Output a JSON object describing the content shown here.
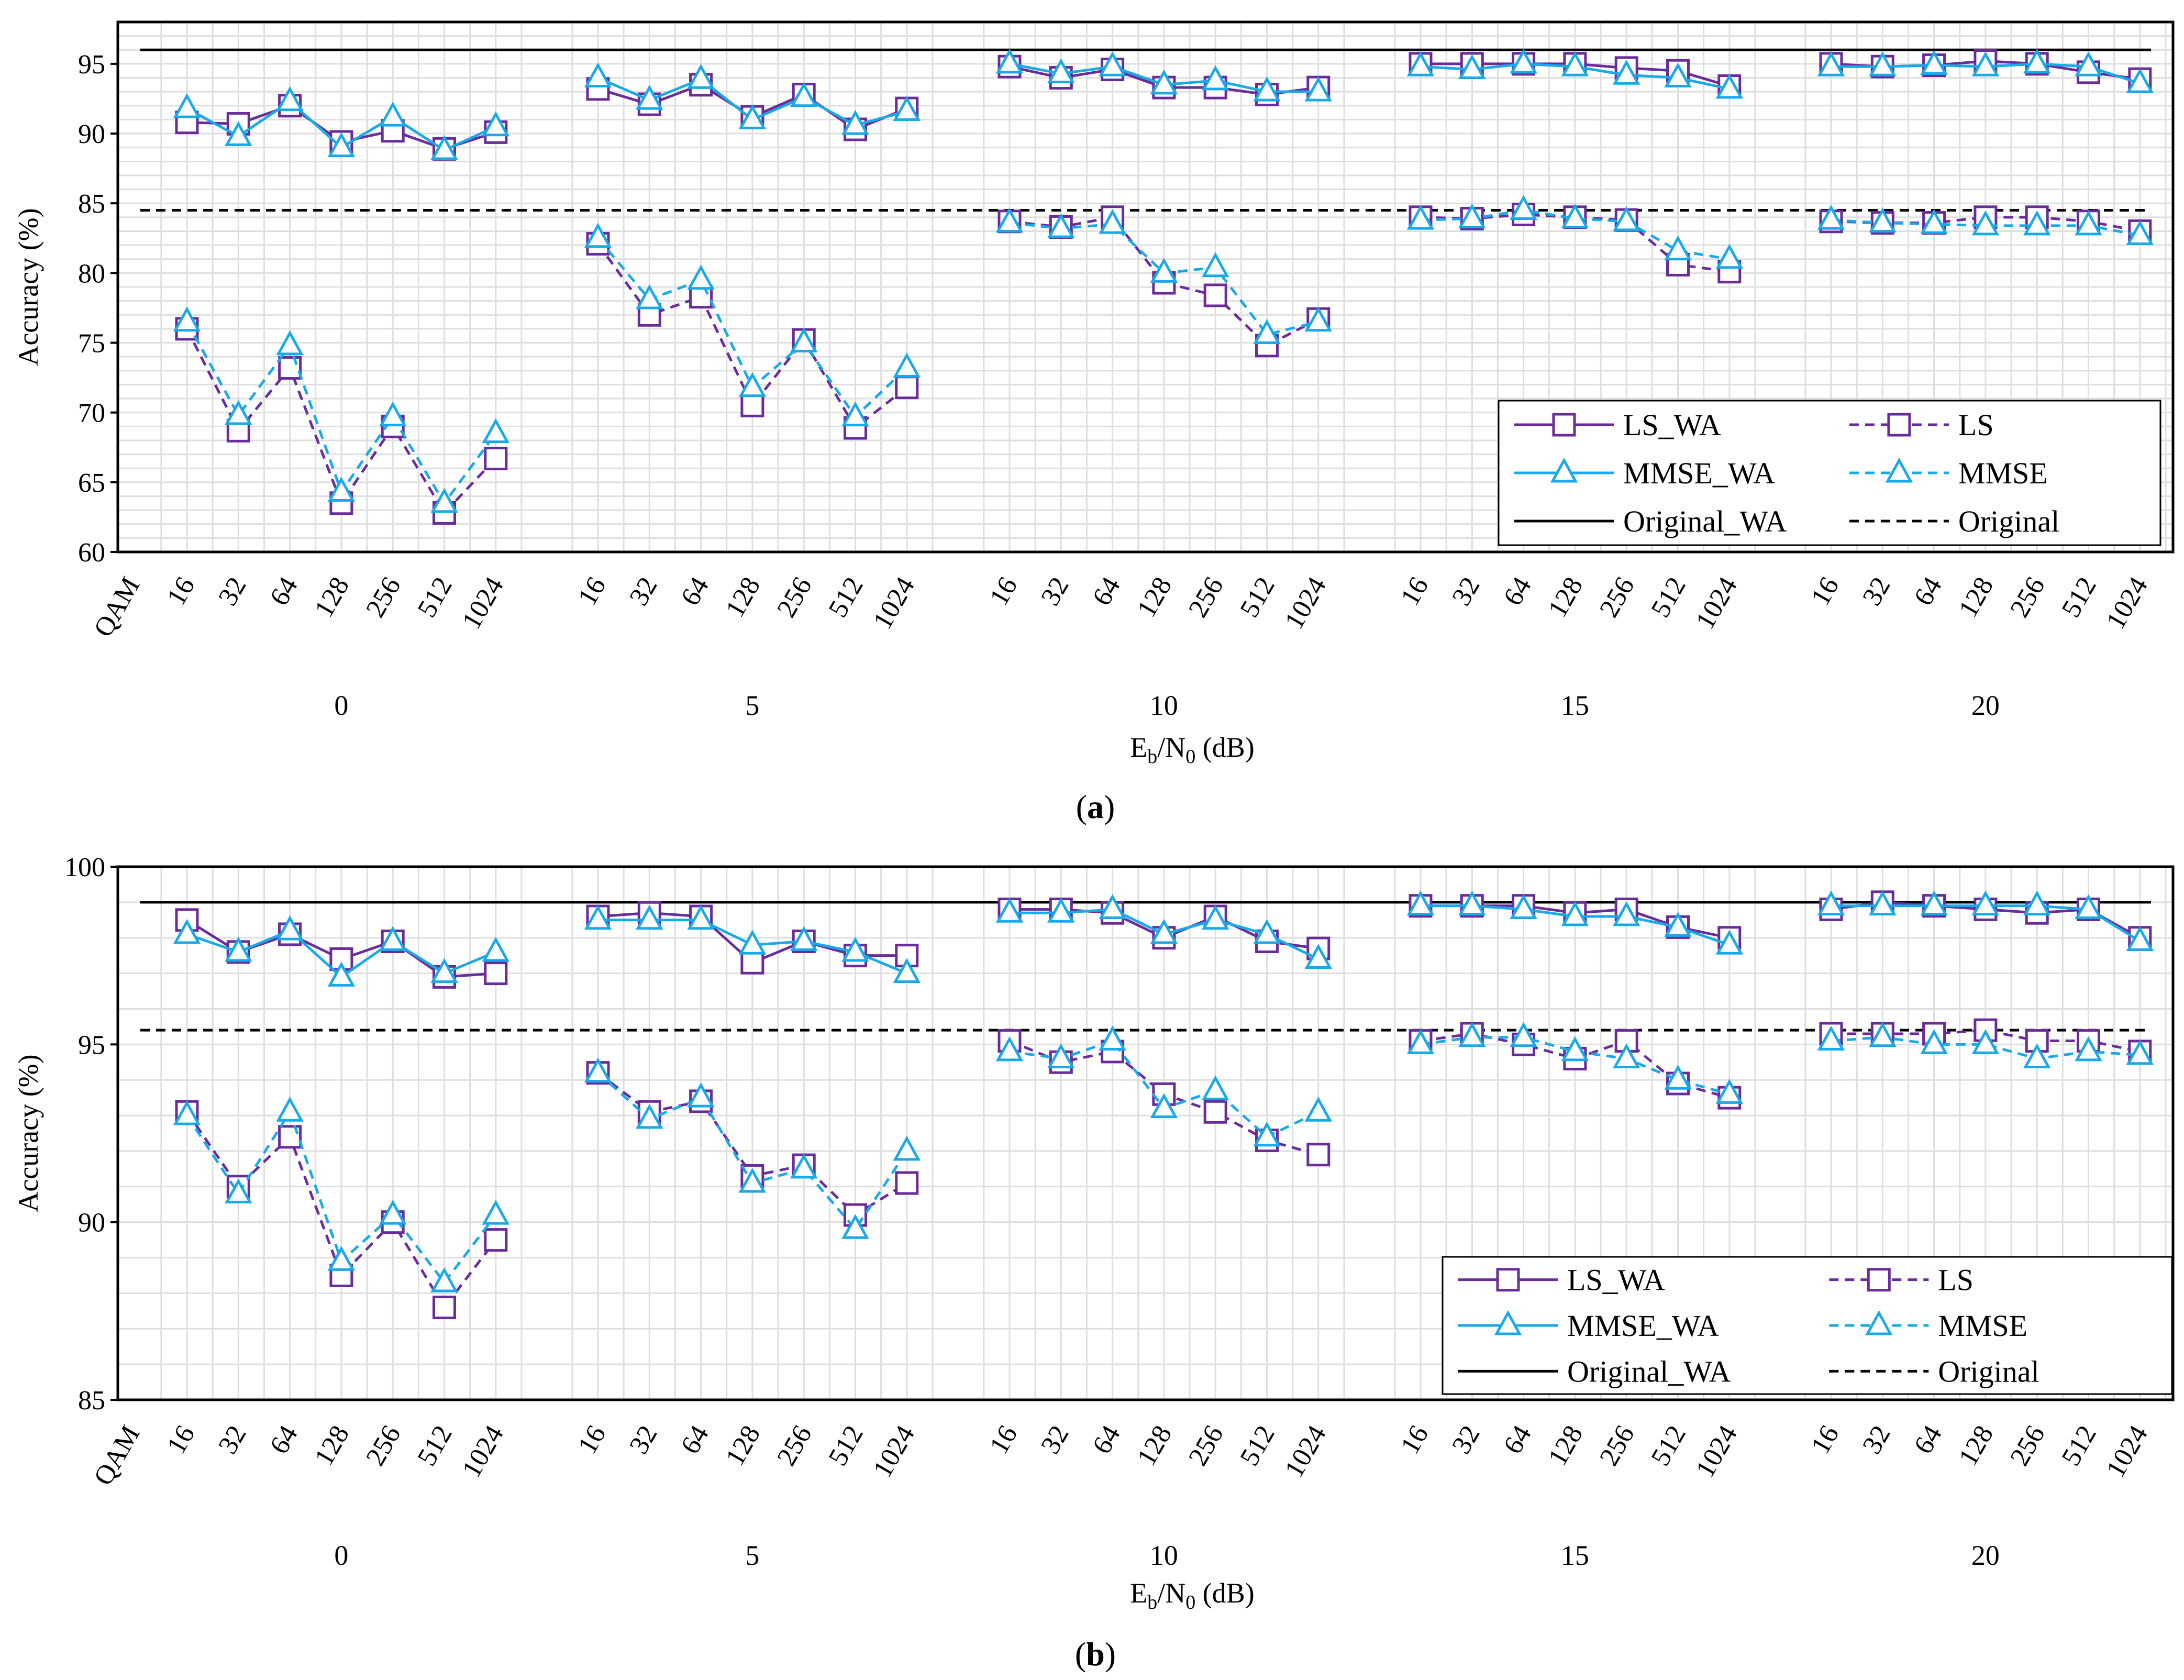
{
  "colors": {
    "ls": "#6a2c9a",
    "mmse": "#1aa9e8",
    "original": "#000000",
    "grid": "#dedede"
  },
  "chart_data": [
    {
      "type": "line",
      "caption": "a",
      "ylabel": "Accuracy (%)",
      "xlabel_main": "E",
      "xlabel_sub1": "b",
      "xlabel_mid": "/N",
      "xlabel_sub2": "0",
      "xlabel_unit": " (dB)",
      "ylim": [
        60,
        98
      ],
      "yticks": [
        60,
        65,
        70,
        75,
        80,
        85,
        90,
        95
      ],
      "qam_label": "QAM",
      "qam_orders": [
        "16",
        "32",
        "64",
        "128",
        "256",
        "512",
        "1024"
      ],
      "groups": [
        "0",
        "5",
        "10",
        "15",
        "20"
      ],
      "reference_lines": [
        {
          "name": "Original_WA",
          "value": 96,
          "style": "solid"
        },
        {
          "name": "Original",
          "value": 84.5,
          "style": "dashed"
        }
      ],
      "series": [
        {
          "name": "LS_WA",
          "style": "solid",
          "marker": "square",
          "color": "ls",
          "values": [
            [
              90.8,
              90.7,
              92.0,
              89.4,
              90.2,
              88.9,
              90.1
            ],
            [
              93.2,
              92.1,
              93.5,
              91.2,
              92.8,
              90.3,
              91.8
            ],
            [
              94.8,
              94.0,
              94.6,
              93.3,
              93.3,
              92.8,
              93.3
            ],
            [
              95.0,
              95.0,
              95.0,
              95.0,
              94.7,
              94.5,
              93.4
            ],
            [
              95.0,
              94.8,
              94.9,
              95.2,
              95.0,
              94.4,
              93.9
            ]
          ]
        },
        {
          "name": "LS",
          "style": "dashed",
          "marker": "square",
          "color": "ls",
          "values": [
            [
              76.0,
              68.7,
              73.2,
              63.5,
              69.0,
              62.8,
              66.7
            ],
            [
              82.1,
              77.0,
              78.3,
              70.5,
              75.2,
              68.9,
              71.8
            ],
            [
              83.7,
              83.3,
              84.0,
              79.3,
              78.4,
              74.8,
              76.7
            ],
            [
              84.0,
              83.9,
              84.2,
              84.0,
              83.8,
              80.6,
              80.1
            ],
            [
              83.7,
              83.6,
              83.6,
              84.0,
              84.0,
              83.7,
              83.0
            ]
          ]
        },
        {
          "name": "MMSE_WA",
          "style": "solid",
          "marker": "triangle",
          "color": "mmse",
          "values": [
            [
              91.8,
              89.8,
              92.3,
              89.0,
              91.2,
              88.8,
              90.5
            ],
            [
              94.0,
              92.4,
              93.9,
              91.0,
              92.6,
              90.6,
              91.6
            ],
            [
              95.0,
              94.3,
              94.8,
              93.5,
              93.8,
              93.0,
              93.0
            ],
            [
              94.8,
              94.6,
              95.0,
              94.8,
              94.2,
              94.0,
              93.2
            ],
            [
              94.8,
              94.8,
              94.9,
              94.8,
              95.0,
              94.8,
              93.6
            ]
          ]
        },
        {
          "name": "MMSE",
          "style": "dashed",
          "marker": "triangle",
          "color": "mmse",
          "values": [
            [
              76.5,
              69.8,
              74.8,
              64.3,
              69.7,
              63.5,
              68.5
            ],
            [
              82.5,
              78.1,
              79.5,
              71.8,
              75.0,
              69.7,
              73.2
            ],
            [
              83.6,
              83.2,
              83.5,
              80.0,
              80.4,
              75.6,
              76.5
            ],
            [
              83.8,
              83.9,
              84.5,
              83.9,
              83.7,
              81.6,
              81.0
            ],
            [
              83.8,
              83.6,
              83.5,
              83.4,
              83.4,
              83.4,
              82.7
            ]
          ]
        }
      ]
    },
    {
      "type": "line",
      "caption": "b",
      "ylabel": "Accuracy (%)",
      "xlabel_main": "E",
      "xlabel_sub1": "b",
      "xlabel_mid": "/N",
      "xlabel_sub2": "0",
      "xlabel_unit": " (dB)",
      "ylim": [
        85,
        100
      ],
      "yticks": [
        85,
        90,
        95,
        100
      ],
      "qam_label": "QAM",
      "qam_orders": [
        "16",
        "32",
        "64",
        "128",
        "256",
        "512",
        "1024"
      ],
      "groups": [
        "0",
        "5",
        "10",
        "15",
        "20"
      ],
      "reference_lines": [
        {
          "name": "Original_WA",
          "value": 99.0,
          "style": "solid"
        },
        {
          "name": "Original",
          "value": 95.4,
          "style": "dashed"
        }
      ],
      "series": [
        {
          "name": "LS_WA",
          "style": "solid",
          "marker": "square",
          "color": "ls",
          "values": [
            [
              98.5,
              97.6,
              98.1,
              97.4,
              97.9,
              96.9,
              97.0
            ],
            [
              98.6,
              98.7,
              98.6,
              97.3,
              97.9,
              97.5,
              97.5
            ],
            [
              98.8,
              98.8,
              98.7,
              98.0,
              98.6,
              97.9,
              97.7
            ],
            [
              98.9,
              98.9,
              98.9,
              98.7,
              98.8,
              98.3,
              98.0
            ],
            [
              98.8,
              99.0,
              98.9,
              98.8,
              98.7,
              98.8,
              98.0
            ]
          ]
        },
        {
          "name": "LS",
          "style": "dashed",
          "marker": "square",
          "color": "ls",
          "values": [
            [
              93.1,
              91.0,
              92.4,
              88.5,
              90.0,
              87.6,
              89.5
            ],
            [
              94.2,
              93.1,
              93.4,
              91.3,
              91.6,
              90.2,
              91.1
            ],
            [
              95.1,
              94.5,
              94.8,
              93.6,
              93.1,
              92.3,
              91.9
            ],
            [
              95.1,
              95.3,
              95.0,
              94.6,
              95.1,
              93.9,
              93.5
            ],
            [
              95.3,
              95.3,
              95.3,
              95.4,
              95.1,
              95.1,
              94.8
            ]
          ]
        },
        {
          "name": "MMSE_WA",
          "style": "solid",
          "marker": "triangle",
          "color": "mmse",
          "values": [
            [
              98.1,
              97.6,
              98.2,
              96.9,
              97.9,
              97.0,
              97.6
            ],
            [
              98.5,
              98.5,
              98.5,
              97.8,
              97.9,
              97.6,
              97.0
            ],
            [
              98.7,
              98.7,
              98.8,
              98.1,
              98.5,
              98.1,
              97.4
            ],
            [
              98.9,
              98.9,
              98.8,
              98.6,
              98.6,
              98.3,
              97.8
            ],
            [
              98.9,
              98.9,
              98.9,
              98.9,
              98.9,
              98.8,
              97.9
            ]
          ]
        },
        {
          "name": "MMSE",
          "style": "dashed",
          "marker": "triangle",
          "color": "mmse",
          "values": [
            [
              93.0,
              90.8,
              93.1,
              88.9,
              90.2,
              88.3,
              90.2
            ],
            [
              94.2,
              92.9,
              93.5,
              91.1,
              91.5,
              89.8,
              92.0
            ],
            [
              94.8,
              94.6,
              95.1,
              93.2,
              93.7,
              92.4,
              93.1
            ],
            [
              95.0,
              95.2,
              95.2,
              94.8,
              94.6,
              94.0,
              93.6
            ],
            [
              95.1,
              95.2,
              95.0,
              95.0,
              94.6,
              94.8,
              94.7
            ]
          ]
        }
      ]
    }
  ]
}
